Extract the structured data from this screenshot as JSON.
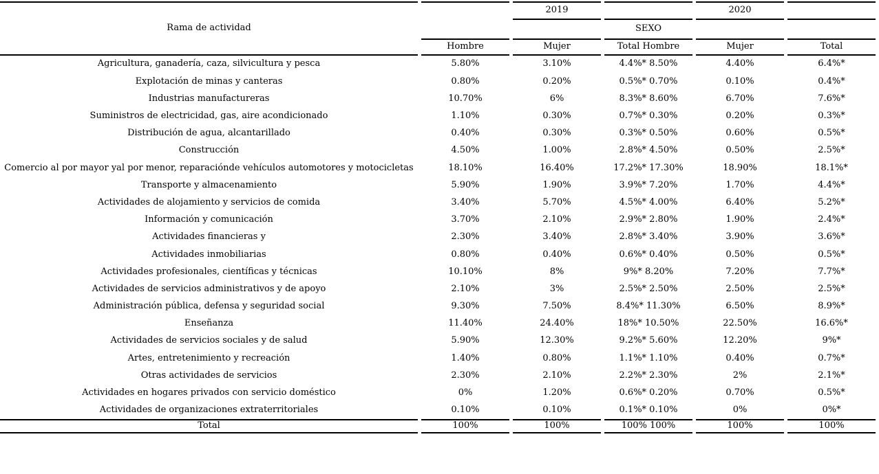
{
  "page": {
    "background_color": "#ffffff",
    "text_color": "#000000",
    "line_color": "#000000"
  },
  "chart_data": {
    "type": "table",
    "title": "",
    "layout_hints": {
      "grid": "horizontal rules only, no vertical rules, gaps at column boundaries",
      "alignment": "all cells centered",
      "year_group_2019": "2019",
      "year_group_2020": "2020"
    },
    "header": {
      "rama": "Rama de actividad",
      "year_2019": "2019",
      "year_2020": "2020",
      "sexo": "SEXO",
      "sex_columns": [
        "Hombre",
        "Mujer",
        "Total Hombre",
        "Mujer",
        "Total"
      ]
    },
    "rows": [
      {
        "label": "Agricultura, ganadería, caza, silvicultura y pesca",
        "values": [
          "5.80%",
          "3.10%",
          "4.4%* 8.50%",
          "4.40%",
          "6.4%*"
        ]
      },
      {
        "label": "Explotación de minas y canteras",
        "values": [
          "0.80%",
          "0.20%",
          "0.5%* 0.70%",
          "0.10%",
          "0.4%*"
        ]
      },
      {
        "label": "Industrias manufactureras",
        "values": [
          "10.70%",
          "6%",
          "8.3%* 8.60%",
          "6.70%",
          "7.6%*"
        ]
      },
      {
        "label": "Suministros de electricidad, gas, aire acondicionado",
        "values": [
          "1.10%",
          "0.30%",
          "0.7%* 0.30%",
          "0.20%",
          "0.3%*"
        ]
      },
      {
        "label": "Distribución de agua, alcantarillado",
        "values": [
          "0.40%",
          "0.30%",
          "0.3%* 0.50%",
          "0.60%",
          "0.5%*"
        ]
      },
      {
        "label": "Construcción",
        "values": [
          "4.50%",
          "1.00%",
          "2.8%* 4.50%",
          "0.50%",
          "2.5%*"
        ]
      },
      {
        "label": "Comercio al por mayor yal por menor, reparaciónde vehículos automotores y motocicletas",
        "values": [
          "18.10%",
          "16.40%",
          "17.2%* 17.30%",
          "18.90%",
          "18.1%*"
        ]
      },
      {
        "label": "Transporte y almacenamiento",
        "values": [
          "5.90%",
          "1.90%",
          "3.9%* 7.20%",
          "1.70%",
          "4.4%*"
        ]
      },
      {
        "label": "Actividades de alojamiento y servicios de comida",
        "values": [
          "3.40%",
          "5.70%",
          "4.5%* 4.00%",
          "6.40%",
          "5.2%*"
        ]
      },
      {
        "label": "Información y comunicación",
        "values": [
          "3.70%",
          "2.10%",
          "2.9%* 2.80%",
          "1.90%",
          "2.4%*"
        ]
      },
      {
        "label": "Actividades financieras y",
        "values": [
          "2.30%",
          "3.40%",
          "2.8%* 3.40%",
          "3.90%",
          "3.6%*"
        ]
      },
      {
        "label": "Actividades inmobiliarias",
        "values": [
          "0.80%",
          "0.40%",
          "0.6%* 0.40%",
          "0.50%",
          "0.5%*"
        ]
      },
      {
        "label": "Actividades profesionales, científicas y técnicas",
        "values": [
          "10.10%",
          "8%",
          "9%* 8.20%",
          "7.20%",
          "7.7%*"
        ]
      },
      {
        "label": "Actividades de servicios administrativos y de apoyo",
        "values": [
          "2.10%",
          "3%",
          "2.5%* 2.50%",
          "2.50%",
          "2.5%*"
        ]
      },
      {
        "label": "Administración pública, defensa y seguridad social",
        "values": [
          "9.30%",
          "7.50%",
          "8.4%* 11.30%",
          "6.50%",
          "8.9%*"
        ]
      },
      {
        "label": "Enseñanza",
        "values": [
          "11.40%",
          "24.40%",
          "18%* 10.50%",
          "22.50%",
          "16.6%*"
        ]
      },
      {
        "label": "Actividades de servicios sociales y de salud",
        "values": [
          "5.90%",
          "12.30%",
          "9.2%* 5.60%",
          "12.20%",
          "9%*"
        ]
      },
      {
        "label": "Artes, entretenimiento y recreación",
        "values": [
          "1.40%",
          "0.80%",
          "1.1%* 1.10%",
          "0.40%",
          "0.7%*"
        ]
      },
      {
        "label": "Otras actividades de servicios",
        "values": [
          "2.30%",
          "2.10%",
          "2.2%* 2.30%",
          "2%",
          "2.1%*"
        ]
      },
      {
        "label": "Actividades en hogares privados con servicio doméstico",
        "values": [
          "0%",
          "1.20%",
          "0.6%* 0.20%",
          "0.70%",
          "0.5%*"
        ]
      },
      {
        "label": "Actividades de organizaciones extraterritoriales",
        "values": [
          "0.10%",
          "0.10%",
          "0.1%* 0.10%",
          "0%",
          "0%*"
        ]
      }
    ],
    "total_row": {
      "label": "Total",
      "values": [
        "100%",
        "100%",
        "100% 100%",
        "100%",
        "100%"
      ]
    }
  }
}
